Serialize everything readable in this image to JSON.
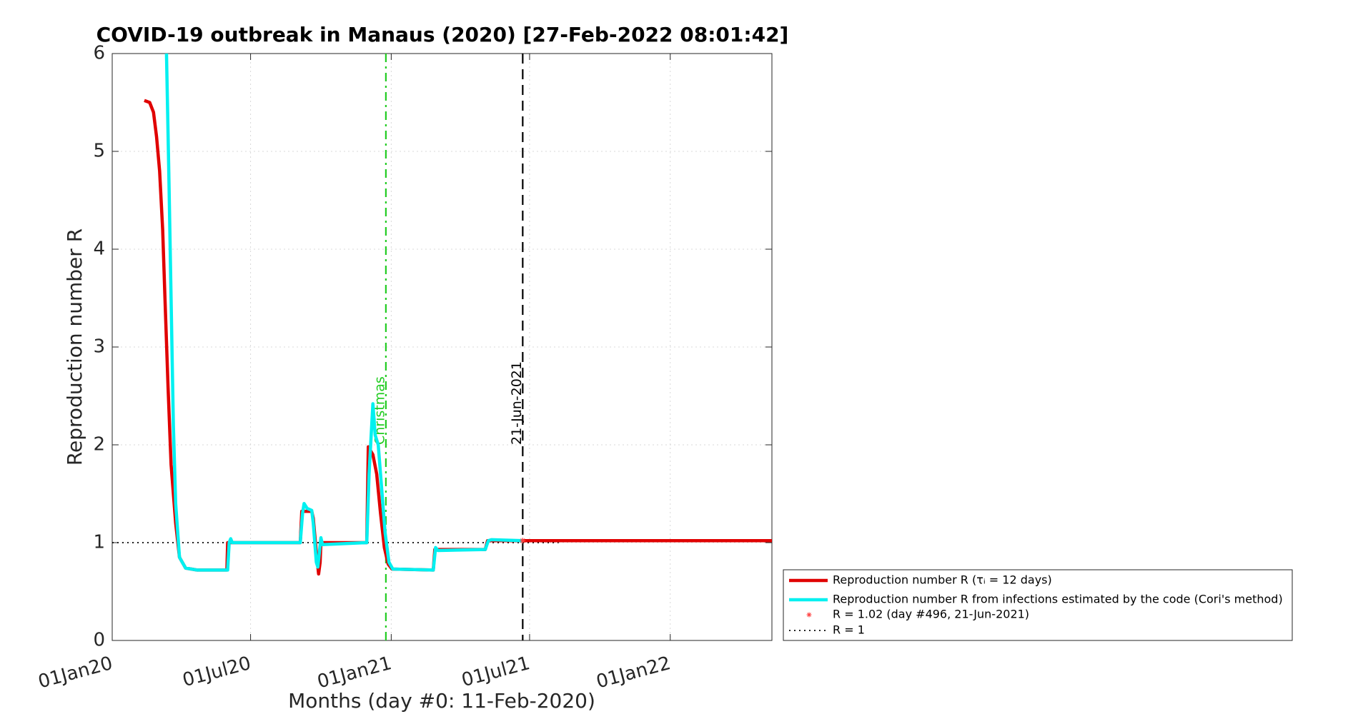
{
  "chart_data": {
    "type": "line",
    "title": "COVID-19 outbreak in Manaus (2020) [27-Feb-2022 08:01:42]",
    "xlabel": "Months (day #0: 11-Feb-2020)",
    "ylabel": "Reproduction number R",
    "xlim": [
      -41,
      822
    ],
    "ylim": [
      0,
      6
    ],
    "xticks": [
      {
        "value": -41,
        "label": "01Jan20"
      },
      {
        "value": 140,
        "label": "01Jul20"
      },
      {
        "value": 324,
        "label": "01Jan21"
      },
      {
        "value": 505,
        "label": "01Jul21"
      },
      {
        "value": 689,
        "label": "01Jan22"
      }
    ],
    "yticks": [
      0,
      1,
      2,
      3,
      4,
      5,
      6
    ],
    "grid": true,
    "legend": "outside-bottom-right",
    "series": [
      {
        "name": "Reproduction number R (τᵢ = 12 days)",
        "color": "#e00000",
        "style": "solid",
        "x": [
          1,
          8,
          13,
          17,
          21,
          25,
          28,
          32,
          36,
          42,
          47,
          55,
          70,
          109,
          110,
          205,
          207,
          220,
          222,
          226,
          229,
          231,
          232,
          292,
          294,
          300,
          305,
          310,
          315,
          320,
          325,
          379,
          381,
          447,
          450,
          822
        ],
        "values": [
          5.52,
          5.5,
          5.4,
          5.15,
          4.8,
          4.2,
          3.5,
          2.6,
          1.8,
          1.2,
          0.85,
          0.74,
          0.72,
          0.72,
          1.0,
          1.0,
          1.32,
          1.32,
          1.25,
          0.9,
          0.68,
          0.8,
          1.0,
          1.0,
          1.98,
          1.9,
          1.7,
          1.3,
          0.95,
          0.78,
          0.73,
          0.72,
          0.93,
          0.93,
          1.02,
          1.02
        ]
      },
      {
        "name": "Reproduction number R from infections estimated by the code (Cori's method)",
        "color": "#00f0f0",
        "style": "solid",
        "x": [
          27,
          30,
          33,
          36,
          39,
          42,
          47,
          55,
          70,
          110,
          112,
          114,
          116,
          205,
          208,
          210,
          214,
          220,
          222,
          226,
          228,
          232,
          234,
          292,
          295,
          300,
          303,
          307,
          311,
          316,
          321,
          326,
          379,
          382,
          385,
          447,
          451,
          455,
          496
        ],
        "values": [
          7,
          6,
          4.8,
          3.5,
          2.2,
          1.4,
          0.85,
          0.74,
          0.72,
          0.72,
          1.0,
          1.04,
          1.0,
          1.0,
          1.3,
          1.4,
          1.35,
          1.33,
          1.2,
          0.8,
          0.75,
          1.05,
          0.98,
          1.0,
          1.7,
          2.42,
          2.1,
          2.0,
          1.6,
          1.1,
          0.8,
          0.73,
          0.72,
          0.95,
          0.92,
          0.93,
          1.02,
          1.03,
          1.02
        ]
      },
      {
        "name": "R = 1.02 (day #496, 21-Jun-2021)",
        "color": "#ff4040",
        "style": "marker",
        "x": [
          496
        ],
        "values": [
          1.02
        ]
      },
      {
        "name": "R = 1",
        "color": "#000000",
        "style": "dotted",
        "x": [
          -41,
          543
        ],
        "values": [
          1,
          1
        ]
      }
    ],
    "annotations": [
      {
        "text": "Christmas",
        "x": 317,
        "color": "#22cc22",
        "style": "dashdot"
      },
      {
        "text": "21-Jun-2021",
        "x": 496,
        "color": "#000000",
        "style": "dashed"
      }
    ]
  }
}
